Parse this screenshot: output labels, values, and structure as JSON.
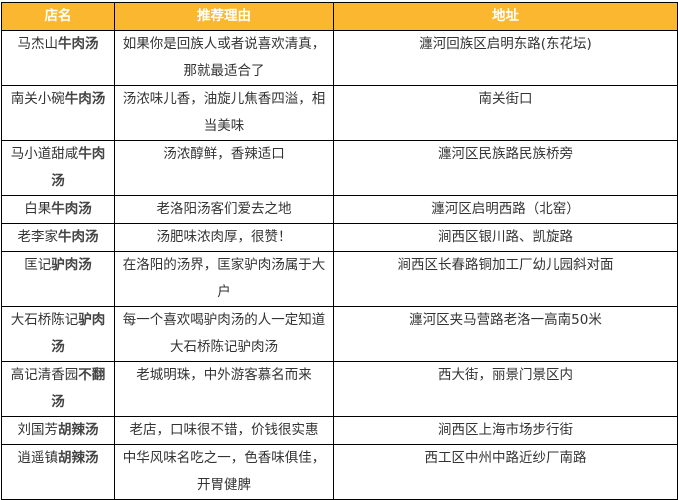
{
  "header_color": "#fbb72f",
  "columns": [
    "店名",
    "推荐理由",
    "地址"
  ],
  "rows": [
    {
      "name_plain": "马杰山",
      "name_bold": "牛肉汤",
      "reason": "如果你是回族人或者说喜欢清真，那就最适合了",
      "address": "瀍河回族区启明东路(东花坛)"
    },
    {
      "name_plain": "南关小碗",
      "name_bold": "牛肉汤",
      "reason": "汤浓味儿香，油旋儿焦香四溢，相当美味",
      "address": "南关街口"
    },
    {
      "name_plain": "马小道甜咸",
      "name_bold": "牛肉汤",
      "reason": "汤浓醇鲜，香辣适口",
      "address": "瀍河区民族路民族桥旁"
    },
    {
      "name_plain": "白果",
      "name_bold": "牛肉汤",
      "reason": "老洛阳汤客们爱去之地",
      "address": "瀍河区启明西路（北窑）"
    },
    {
      "name_plain": "老李家",
      "name_bold": "牛肉汤",
      "reason": "汤肥味浓肉厚，很赞！",
      "address": "涧西区银川路、凯旋路"
    },
    {
      "name_plain": "匡记",
      "name_bold": "驴肉汤",
      "reason": "在洛阳的汤界，匡家驴肉汤属于大户",
      "address": "涧西区长春路铜加工厂幼儿园斜对面"
    },
    {
      "name_plain": "大石桥陈记",
      "name_bold": "驴肉汤",
      "reason": "每一个喜欢喝驴肉汤的人一定知道大石桥陈记驴肉汤",
      "address": "瀍河区夹马营路老洛一高南50米"
    },
    {
      "name_plain": "高记清香园",
      "name_bold": "不翻汤",
      "reason": "老城明珠，中外游客慕名而来",
      "address": "西大街，丽景门景区内"
    },
    {
      "name_plain": "刘国芳",
      "name_bold": "胡辣汤",
      "reason": "老店，口味很不错，价钱很实惠",
      "address": "涧西区上海市场步行街"
    },
    {
      "name_plain": "逍遥镇",
      "name_bold": "胡辣汤",
      "reason": "中华风味名吃之一，色香味俱佳，开胃健脾",
      "address": "西工区中州中路近纱厂南路"
    }
  ]
}
